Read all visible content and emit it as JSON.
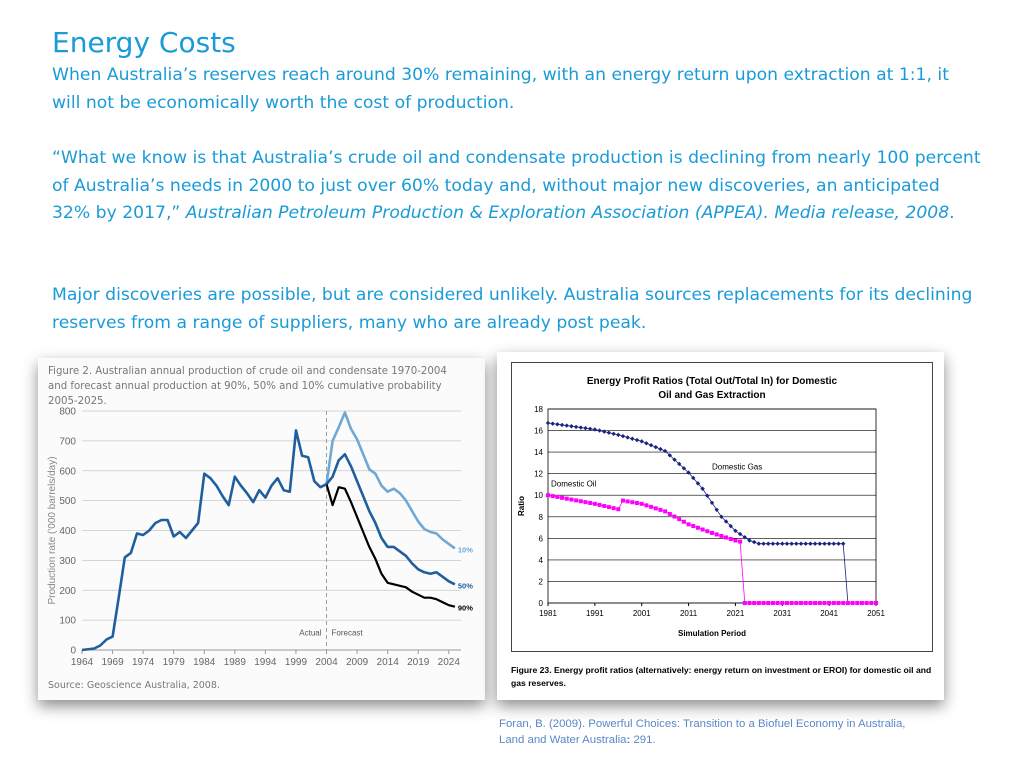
{
  "slide": {
    "title": "Energy Costs",
    "para1": "When Australia’s reserves reach around 30% remaining, with an energy return upon extraction at 1:1, it will not be economically worth the cost of production.",
    "para2_quote": "“What we know is that Australia’s crude oil and condensate production is declining from nearly 100 percent of Australia’s needs in 2000 to just over 60% today and, without major new discoveries, an anticipated 32% by 2017,” ",
    "para2_citation": "Australian Petroleum Production & Exploration Association (APPEA). Media release, 2008",
    "para2_end": ".",
    "para3": "Major discoveries are possible, but are considered unlikely. Australia sources replacements for its declining reserves from a range of suppliers, many who are already post peak."
  },
  "figure_left": {
    "caption": "Figure 2. Australian annual production of crude oil and condensate 1970-2004 and forecast annual production at 90%, 50% and 10% cumulative probability 2005-2025.",
    "source": "Source: Geoscience Australia, 2008.",
    "actual_label": "Actual",
    "forecast_label": "Forecast"
  },
  "figure_right": {
    "caption": "Figure 23. Energy profit ratios (alternatively: energy return on investment or EROI) for domestic oil and gas reserves."
  },
  "reference": {
    "line1": "Foran, B. (2009). Powerful Choices: Transition to a Biofuel Economy in Australia,",
    "line2_prefix": "Land and Water Australia",
    "line2_colon": ":",
    "line2_suffix": " 291."
  },
  "chart_data": [
    {
      "type": "line",
      "title": "",
      "xlabel": "",
      "ylabel": "Production rate ('000 barrels/day)",
      "xlim": [
        1964,
        2026
      ],
      "ylim": [
        0,
        800
      ],
      "x_ticks": [
        1964,
        1969,
        1974,
        1979,
        1984,
        1989,
        1994,
        1999,
        2004,
        2009,
        2014,
        2019,
        2024
      ],
      "y_ticks": [
        0,
        100,
        200,
        300,
        400,
        500,
        600,
        700,
        800
      ],
      "grid": true,
      "series": [
        {
          "name": "Actual",
          "color": "#1f5f9e",
          "points": [
            [
              1964,
              0
            ],
            [
              1966,
              5
            ],
            [
              1967,
              15
            ],
            [
              1968,
              35
            ],
            [
              1969,
              45
            ],
            [
              1970,
              175
            ],
            [
              1971,
              310
            ],
            [
              1972,
              325
            ],
            [
              1973,
              390
            ],
            [
              1974,
              385
            ],
            [
              1975,
              400
            ],
            [
              1976,
              425
            ],
            [
              1977,
              435
            ],
            [
              1978,
              435
            ],
            [
              1979,
              380
            ],
            [
              1980,
              395
            ],
            [
              1981,
              375
            ],
            [
              1983,
              425
            ],
            [
              1984,
              590
            ],
            [
              1985,
              575
            ],
            [
              1986,
              550
            ],
            [
              1987,
              515
            ],
            [
              1988,
              485
            ],
            [
              1989,
              580
            ],
            [
              1990,
              550
            ],
            [
              1991,
              525
            ],
            [
              1992,
              495
            ],
            [
              1993,
              535
            ],
            [
              1994,
              510
            ],
            [
              1995,
              550
            ],
            [
              1996,
              575
            ],
            [
              1997,
              535
            ],
            [
              1998,
              530
            ],
            [
              1999,
              735
            ],
            [
              2000,
              650
            ],
            [
              2001,
              645
            ],
            [
              2002,
              565
            ],
            [
              2003,
              545
            ],
            [
              2004,
              555
            ]
          ]
        },
        {
          "name": "10%",
          "color": "#6fa8d4",
          "points": [
            [
              2004,
              555
            ],
            [
              2005,
              700
            ],
            [
              2006,
              745
            ],
            [
              2007,
              795
            ],
            [
              2008,
              740
            ],
            [
              2009,
              705
            ],
            [
              2010,
              655
            ],
            [
              2011,
              605
            ],
            [
              2012,
              590
            ],
            [
              2013,
              550
            ],
            [
              2014,
              530
            ],
            [
              2015,
              540
            ],
            [
              2016,
              525
            ],
            [
              2017,
              500
            ],
            [
              2018,
              465
            ],
            [
              2019,
              430
            ],
            [
              2020,
              405
            ],
            [
              2021,
              395
            ],
            [
              2022,
              390
            ],
            [
              2023,
              370
            ],
            [
              2024,
              355
            ],
            [
              2025,
              340
            ]
          ]
        },
        {
          "name": "50%",
          "color": "#1f5f9e",
          "points": [
            [
              2004,
              555
            ],
            [
              2005,
              580
            ],
            [
              2006,
              635
            ],
            [
              2007,
              655
            ],
            [
              2008,
              615
            ],
            [
              2009,
              565
            ],
            [
              2010,
              515
            ],
            [
              2011,
              465
            ],
            [
              2012,
              425
            ],
            [
              2013,
              375
            ],
            [
              2014,
              345
            ],
            [
              2015,
              345
            ],
            [
              2016,
              330
            ],
            [
              2017,
              315
            ],
            [
              2018,
              290
            ],
            [
              2019,
              270
            ],
            [
              2020,
              260
            ],
            [
              2021,
              255
            ],
            [
              2022,
              260
            ],
            [
              2023,
              245
            ],
            [
              2024,
              230
            ],
            [
              2025,
              220
            ]
          ]
        },
        {
          "name": "90%",
          "color": "#000000",
          "points": [
            [
              2004,
              555
            ],
            [
              2005,
              485
            ],
            [
              2006,
              545
            ],
            [
              2007,
              540
            ],
            [
              2008,
              495
            ],
            [
              2009,
              445
            ],
            [
              2010,
              395
            ],
            [
              2011,
              345
            ],
            [
              2012,
              305
            ],
            [
              2013,
              255
            ],
            [
              2014,
              225
            ],
            [
              2015,
              220
            ],
            [
              2016,
              215
            ],
            [
              2017,
              210
            ],
            [
              2018,
              195
            ],
            [
              2019,
              185
            ],
            [
              2020,
              175
            ],
            [
              2021,
              175
            ],
            [
              2022,
              170
            ],
            [
              2023,
              160
            ],
            [
              2024,
              150
            ],
            [
              2025,
              145
            ]
          ]
        }
      ]
    },
    {
      "type": "line",
      "title": "Energy Profit Ratios (Total Out/Total In) for Domestic Oil and Gas Extraction",
      "xlabel": "Simulation Period",
      "ylabel": "Ratio",
      "xlim": [
        1981,
        2051
      ],
      "ylim": [
        0,
        18
      ],
      "x_ticks": [
        1981,
        1991,
        2001,
        2011,
        2021,
        2031,
        2041,
        2051
      ],
      "y_ticks": [
        0,
        2,
        4,
        6,
        8,
        10,
        12,
        14,
        16,
        18
      ],
      "grid": true,
      "series": [
        {
          "name": "Domestic Gas",
          "color": "#1a237e",
          "marker": "diamond",
          "points": [
            [
              1981,
              16.7
            ],
            [
              1986,
              16.4
            ],
            [
              1991,
              16.1
            ],
            [
              1996,
              15.6
            ],
            [
              2001,
              15.0
            ],
            [
              2006,
              14.1
            ],
            [
              2011,
              12.1
            ],
            [
              2014,
              10.6
            ],
            [
              2018,
              8.0
            ],
            [
              2021,
              6.7
            ],
            [
              2024,
              5.8
            ],
            [
              2026,
              5.5
            ],
            [
              2031,
              5.5
            ],
            [
              2036,
              5.5
            ],
            [
              2041,
              5.5
            ],
            [
              2044,
              5.5
            ],
            [
              2045,
              0
            ],
            [
              2051,
              0
            ]
          ]
        },
        {
          "name": "Domestic Oil",
          "color": "#ff00ff",
          "marker": "square",
          "points": [
            [
              1981,
              10.0
            ],
            [
              1986,
              9.6
            ],
            [
              1991,
              9.2
            ],
            [
              1995,
              8.8
            ],
            [
              1996,
              8.7
            ],
            [
              1997,
              9.5
            ],
            [
              2001,
              9.2
            ],
            [
              2006,
              8.5
            ],
            [
              2011,
              7.3
            ],
            [
              2016,
              6.5
            ],
            [
              2021,
              5.8
            ],
            [
              2022,
              5.7
            ],
            [
              2023,
              0
            ],
            [
              2031,
              0
            ],
            [
              2041,
              0
            ],
            [
              2051,
              0
            ]
          ]
        }
      ]
    }
  ]
}
